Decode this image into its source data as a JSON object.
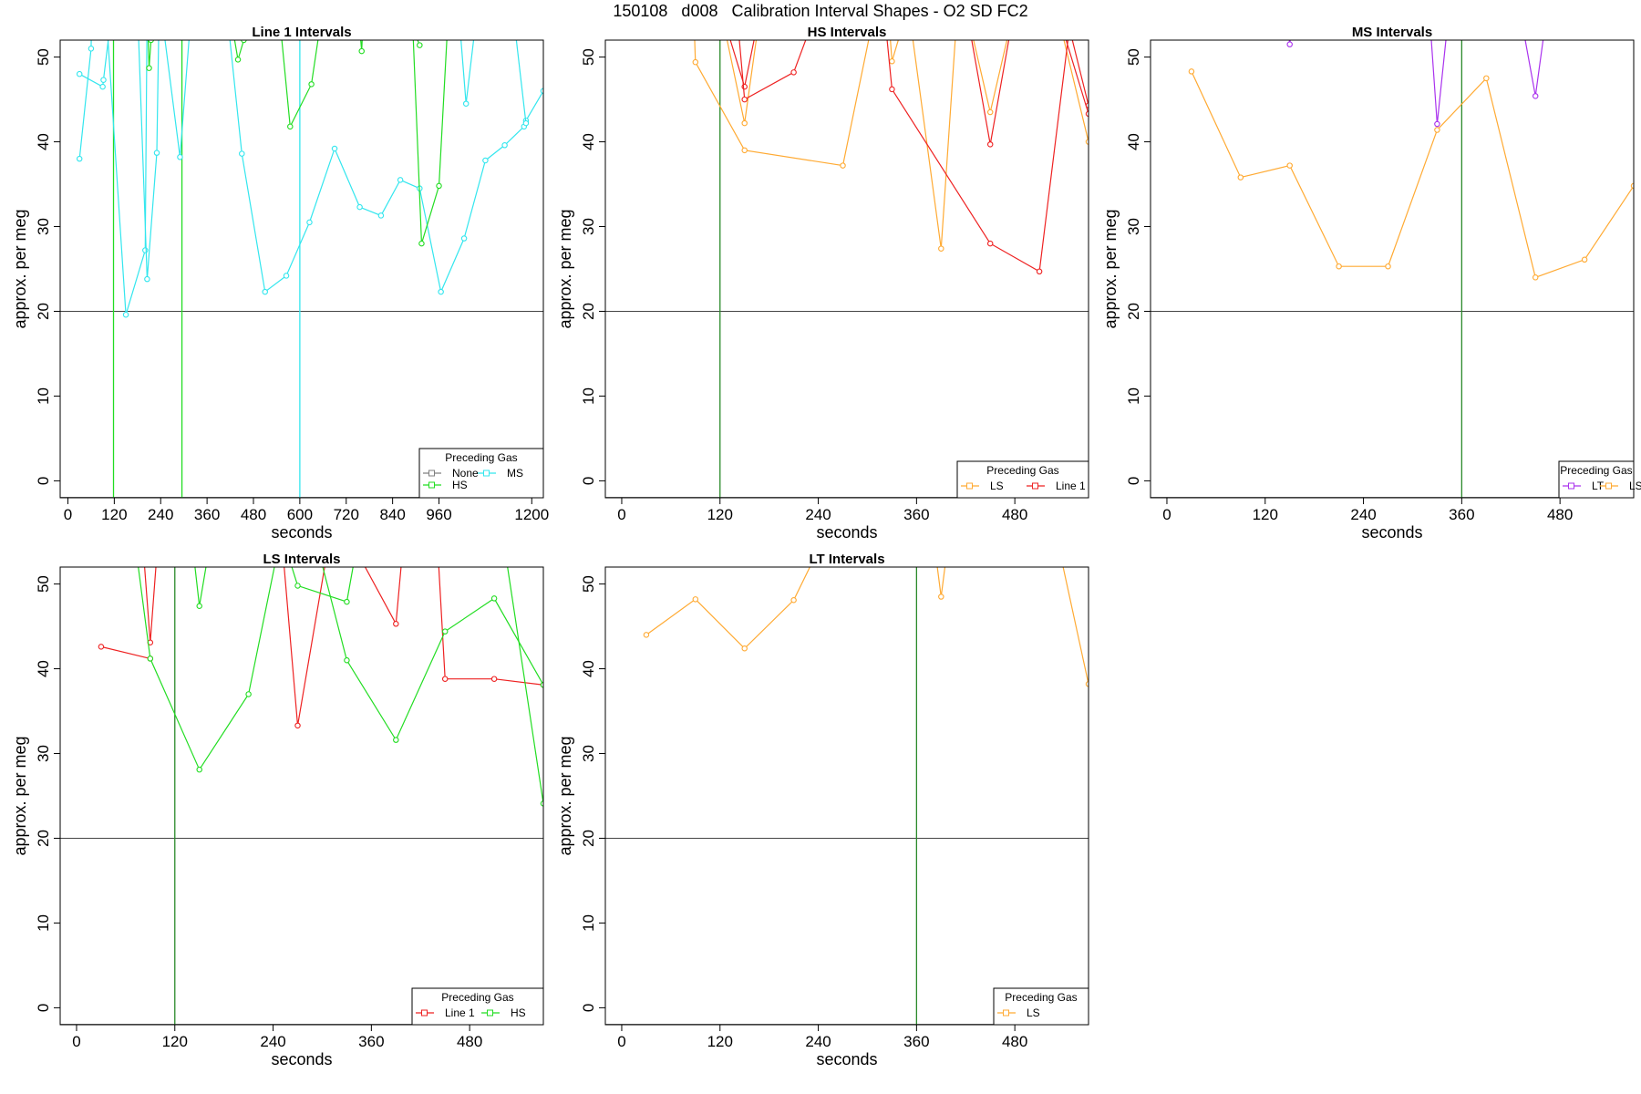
{
  "title": "150108   d008   Calibration Interval Shapes - O2 SD FC2",
  "colors": {
    "None": "#7f7f7f",
    "HS": "#22dd22",
    "MS": "#33e6ee",
    "LS": "#ffaa33",
    "Line 1": "#ee2222",
    "LT": "#aa33ee"
  },
  "chart_data": [
    {
      "type": "line",
      "title": "Line 1 Intervals",
      "xlabel": "seconds",
      "ylabel": "approx. per meg",
      "xlim": [
        -20,
        1230
      ],
      "ylim": [
        -2,
        52
      ],
      "xticks": [
        0,
        120,
        240,
        360,
        480,
        600,
        720,
        840,
        960,
        1200
      ],
      "yticks": [
        0,
        10,
        20,
        30,
        40,
        50
      ],
      "hline": 20,
      "vlines": [
        {
          "x": 118,
          "series": "HS"
        },
        {
          "x": 295,
          "series": "HS"
        },
        {
          "x": 600,
          "series": "MS"
        }
      ],
      "legend": {
        "title": "Preceding Gas",
        "position": "bottom-right",
        "entries": [
          "None",
          "MS",
          "HS"
        ]
      },
      "series": [
        {
          "name": "MS",
          "segments": [
            [
              [
                30,
                48
              ],
              [
                90,
                46.5
              ],
              [
                92,
                47.3
              ],
              [
                115,
                56
              ]
            ],
            [
              [
                30,
                38
              ],
              [
                60,
                51
              ],
              [
                62,
                56
              ]
            ],
            [
              [
                98,
                56
              ],
              [
                150,
                19.6
              ],
              [
                200,
                27.2
              ],
              [
                205,
                56
              ]
            ],
            [
              [
                180,
                56
              ],
              [
                205,
                23.8
              ],
              [
                230,
                38.7
              ],
              [
                236,
                56
              ]
            ],
            [
              [
                240,
                56
              ],
              [
                290,
                38.2
              ],
              [
                320,
                56
              ]
            ],
            [
              [
                410,
                56
              ],
              [
                450,
                38.6
              ],
              [
                510,
                22.3
              ],
              [
                565,
                24.2
              ],
              [
                625,
                30.5
              ],
              [
                690,
                39.2
              ],
              [
                755,
                32.3
              ],
              [
                810,
                31.3
              ],
              [
                860,
                35.5
              ],
              [
                910,
                34.5
              ],
              [
                965,
                22.3
              ],
              [
                1025,
                28.6
              ],
              [
                1080,
                37.8
              ],
              [
                1130,
                39.6
              ],
              [
                1180,
                41.8
              ],
              [
                1185,
                42.5
              ],
              [
                1230,
                46
              ]
            ],
            [
              [
                1150,
                56
              ],
              [
                1185,
                42.2
              ]
            ],
            [
              [
                1010,
                56
              ],
              [
                1030,
                44.5
              ],
              [
                1060,
                56
              ]
            ]
          ]
        },
        {
          "name": "HS",
          "segments": [
            [
              [
                205,
                56
              ],
              [
                210,
                48.7
              ],
              [
                215,
                52
              ],
              [
                218,
                56
              ]
            ],
            [
              [
                420,
                55
              ],
              [
                440,
                49.7
              ],
              [
                455,
                52
              ]
            ],
            [
              [
                545,
                56
              ],
              [
                575,
                41.8
              ],
              [
                630,
                46.8
              ],
              [
                660,
                56
              ]
            ],
            [
              [
                750,
                56
              ],
              [
                760,
                50.7
              ],
              [
                765,
                56
              ]
            ],
            [
              [
                870,
                56
              ],
              [
                910,
                51.4
              ]
            ],
            [
              [
                890,
                56
              ],
              [
                915,
                28
              ],
              [
                960,
                34.8
              ],
              [
                985,
                56
              ]
            ]
          ]
        }
      ]
    },
    {
      "type": "line",
      "title": "HS Intervals",
      "xlabel": "seconds",
      "ylabel": "approx. per meg",
      "xlim": [
        -20,
        570
      ],
      "ylim": [
        -2,
        52
      ],
      "xticks": [
        0,
        120,
        240,
        360,
        480
      ],
      "yticks": [
        0,
        10,
        20,
        30,
        40,
        50
      ],
      "hline": 20,
      "vlines": [
        {
          "x": 120,
          "series": "HS"
        }
      ],
      "legend": {
        "title": "Preceding Gas",
        "position": "bottom-right",
        "entries": [
          "LS",
          "Line 1"
        ]
      },
      "series": [
        {
          "name": "LS",
          "segments": [
            [
              [
                88,
                55
              ],
              [
                90,
                49.4
              ],
              [
                150,
                39
              ],
              [
                270,
                37.2
              ],
              [
                310,
                56
              ]
            ],
            [
              [
                120,
                56
              ],
              [
                150,
                42.2
              ],
              [
                170,
                56
              ]
            ],
            [
              [
                325,
                56
              ],
              [
                330,
                49.5
              ],
              [
                350,
                56
              ]
            ],
            [
              [
                350,
                56
              ],
              [
                390,
                27.4
              ],
              [
                410,
                56
              ]
            ],
            [
              [
                420,
                56
              ],
              [
                450,
                43.5
              ],
              [
                480,
                56
              ]
            ],
            [
              [
                530,
                56
              ],
              [
                570,
                40
              ]
            ]
          ]
        },
        {
          "name": "Line 1",
          "segments": [
            [
              [
                120,
                56
              ],
              [
                150,
                46.5
              ],
              [
                170,
                56
              ]
            ],
            [
              [
                140,
                56
              ],
              [
                150,
                45
              ],
              [
                210,
                48.2
              ],
              [
                240,
                56
              ]
            ],
            [
              [
                320,
                56
              ],
              [
                330,
                46.2
              ],
              [
                450,
                28
              ],
              [
                510,
                24.7
              ],
              [
                550,
                56
              ]
            ],
            [
              [
                420,
                56
              ],
              [
                450,
                39.7
              ],
              [
                480,
                56
              ]
            ],
            [
              [
                540,
                56
              ],
              [
                570,
                44.3
              ]
            ],
            [
              [
                530,
                56
              ],
              [
                570,
                43.3
              ]
            ]
          ]
        }
      ]
    },
    {
      "type": "line",
      "title": "MS Intervals",
      "xlabel": "seconds",
      "ylabel": "approx. per meg",
      "xlim": [
        -20,
        570
      ],
      "ylim": [
        -2,
        52
      ],
      "xticks": [
        0,
        120,
        240,
        360,
        480
      ],
      "yticks": [
        0,
        10,
        20,
        30,
        40,
        50
      ],
      "hline": 20,
      "vlines": [
        {
          "x": 360,
          "series": "HS"
        }
      ],
      "legend": {
        "title": "Preceding Gas",
        "position": "bottom-right",
        "entries": [
          "LT",
          "LS"
        ]
      },
      "series": [
        {
          "name": "LS",
          "segments": [
            [
              [
                30,
                48.3
              ],
              [
                90,
                35.8
              ],
              [
                150,
                37.2
              ],
              [
                210,
                25.3
              ],
              [
                270,
                25.3
              ],
              [
                330,
                41.4
              ],
              [
                390,
                47.5
              ],
              [
                450,
                24
              ],
              [
                510,
                26.1
              ],
              [
                570,
                34.8
              ]
            ]
          ]
        },
        {
          "name": "LT",
          "segments": [
            [
              [
                145,
                56
              ],
              [
                150,
                51.5
              ],
              [
                155,
                56
              ]
            ],
            [
              [
                320,
                56
              ],
              [
                330,
                42.1
              ],
              [
                345,
                56
              ]
            ],
            [
              [
                430,
                56
              ],
              [
                450,
                45.4
              ],
              [
                465,
                56
              ]
            ]
          ]
        }
      ]
    },
    {
      "type": "line",
      "title": "LS Intervals",
      "xlabel": "seconds",
      "ylabel": "approx. per meg",
      "xlim": [
        -20,
        570
      ],
      "ylim": [
        -2,
        52
      ],
      "xticks": [
        0,
        120,
        240,
        360,
        480
      ],
      "yticks": [
        0,
        10,
        20,
        30,
        40,
        50
      ],
      "hline": 20,
      "vlines": [
        {
          "x": 120,
          "series": "HS"
        }
      ],
      "legend": {
        "title": "Preceding Gas",
        "position": "bottom-right",
        "entries": [
          "Line 1",
          "HS"
        ]
      },
      "series": [
        {
          "name": "Line 1",
          "segments": [
            [
              [
                30,
                42.6
              ],
              [
                90,
                41.2
              ]
            ],
            [
              [
                80,
                56
              ],
              [
                90,
                43.1
              ],
              [
                100,
                56
              ]
            ],
            [
              [
                250,
                56
              ],
              [
                270,
                33.3
              ],
              [
                310,
                56
              ]
            ],
            [
              [
                330,
                56
              ],
              [
                390,
                45.3
              ],
              [
                400,
                56
              ]
            ],
            [
              [
                440,
                56
              ],
              [
                450,
                38.8
              ],
              [
                510,
                38.8
              ],
              [
                570,
                38.1
              ]
            ]
          ]
        },
        {
          "name": "HS",
          "segments": [
            [
              [
                70,
                56
              ],
              [
                90,
                41.2
              ],
              [
                150,
                28.1
              ],
              [
                210,
                37
              ],
              [
                250,
                56
              ]
            ],
            [
              [
                140,
                56
              ],
              [
                150,
                47.4
              ],
              [
                165,
                56
              ]
            ],
            [
              [
                250,
                56
              ],
              [
                270,
                49.8
              ],
              [
                330,
                47.9
              ],
              [
                345,
                56
              ]
            ],
            [
              [
                290,
                56
              ],
              [
                330,
                41
              ],
              [
                390,
                31.6
              ],
              [
                450,
                44.4
              ],
              [
                510,
                48.3
              ],
              [
                570,
                38.1
              ]
            ],
            [
              [
                520,
                56
              ],
              [
                570,
                24.1
              ]
            ]
          ]
        }
      ]
    },
    {
      "type": "line",
      "title": "LT Intervals",
      "xlabel": "seconds",
      "ylabel": "approx. per meg",
      "xlim": [
        -20,
        570
      ],
      "ylim": [
        -2,
        52
      ],
      "xticks": [
        0,
        120,
        240,
        360,
        480
      ],
      "yticks": [
        0,
        10,
        20,
        30,
        40,
        50
      ],
      "hline": 20,
      "vlines": [
        {
          "x": 360,
          "series": "HS"
        }
      ],
      "legend": {
        "title": "Preceding Gas",
        "position": "bottom-right",
        "entries": [
          "LS"
        ]
      },
      "series": [
        {
          "name": "LS",
          "segments": [
            [
              [
                30,
                44
              ],
              [
                90,
                48.2
              ],
              [
                150,
                42.4
              ],
              [
                210,
                48.1
              ],
              [
                250,
                56
              ]
            ],
            [
              [
                380,
                56
              ],
              [
                390,
                48.5
              ],
              [
                400,
                56
              ]
            ],
            [
              [
                530,
                56
              ],
              [
                570,
                38.2
              ]
            ]
          ]
        }
      ]
    }
  ]
}
